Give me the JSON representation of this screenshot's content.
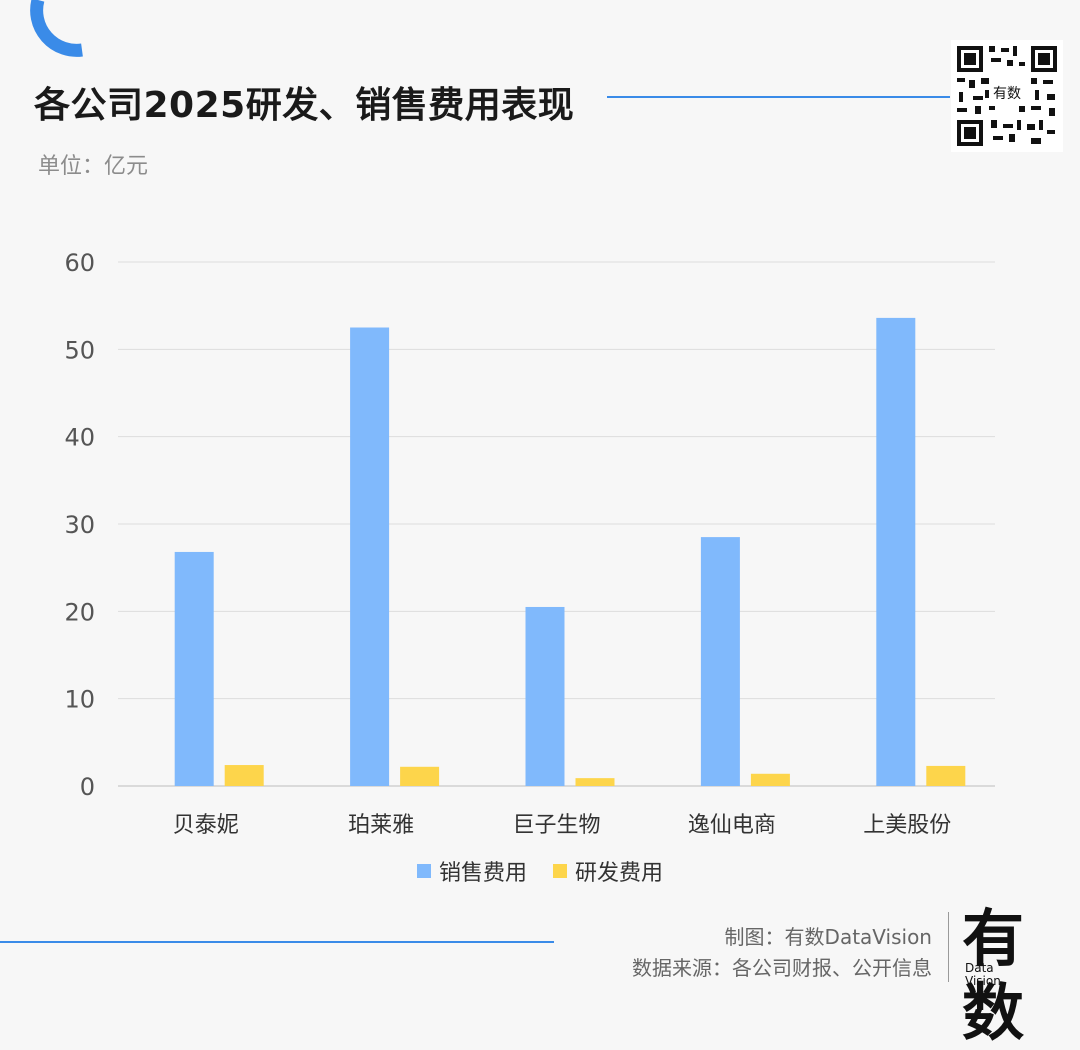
{
  "header": {
    "title": "各公司2025研发、销售费用表现",
    "unit": "单位：亿元"
  },
  "colors": {
    "accent": "#3a8be8",
    "sales": "#80b9fc",
    "rd": "#fdd54b",
    "grid": "#dcdcdc",
    "axis_text": "#555555"
  },
  "chart_data": {
    "type": "bar",
    "categories": [
      "贝泰妮",
      "珀莱雅",
      "巨子生物",
      "逸仙电商",
      "上美股份"
    ],
    "series": [
      {
        "name": "销售费用",
        "values": [
          26.8,
          52.5,
          20.5,
          28.5,
          53.6
        ]
      },
      {
        "name": "研发费用",
        "values": [
          2.4,
          2.2,
          0.9,
          1.4,
          2.3
        ]
      }
    ],
    "yticks": [
      0,
      10,
      20,
      30,
      40,
      50,
      60
    ],
    "ylim": [
      0,
      60
    ],
    "grid": true,
    "legend": "bottom-center"
  },
  "footer": {
    "credit_line1": "制图：有数DataVision",
    "credit_line2": "数据来源：各公司财报、公开信息",
    "logo_main": "有数",
    "logo_sub1": "Data",
    "logo_sub2": "Vision"
  },
  "qr_icon": "qr-code-icon"
}
